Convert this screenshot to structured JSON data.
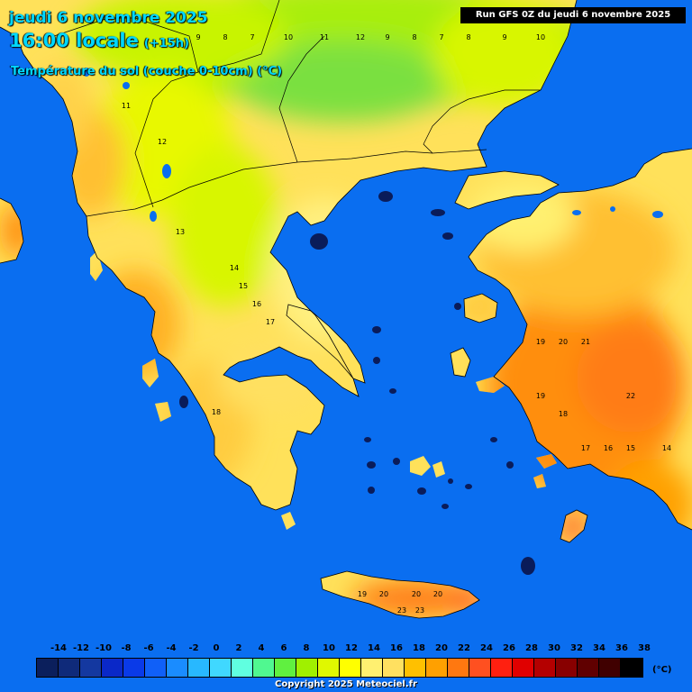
{
  "header": {
    "date": "jeudi 6 novembre 2025",
    "time": "16:00 locale",
    "offset": "(+15h)",
    "parameter": "Température du sol (couche 0-10cm) (°C)",
    "run": "Run GFS 0Z du jeudi 6 novembre 2025"
  },
  "map": {
    "region": "Greece / Aegean Sea",
    "sea_color": "#0a6ef0",
    "sample_values": {
      "north_balkans": [
        9,
        8,
        7,
        10,
        11,
        12,
        9,
        8,
        7,
        8,
        9,
        10
      ],
      "western_turkey": [
        19,
        20,
        21,
        22,
        19,
        18,
        17,
        16,
        15,
        14
      ],
      "greek_mainland": [
        14,
        15,
        16,
        17,
        18,
        13,
        12,
        11
      ],
      "crete": [
        19,
        20,
        20,
        20,
        23,
        23
      ]
    }
  },
  "legend": {
    "labels": [
      "-14",
      "-12",
      "-10",
      "-8",
      "-6",
      "-4",
      "-2",
      "0",
      "2",
      "4",
      "6",
      "8",
      "10",
      "12",
      "14",
      "16",
      "18",
      "20",
      "22",
      "24",
      "26",
      "28",
      "30",
      "32",
      "34",
      "36",
      "38"
    ],
    "colors": [
      "#0b1f5c",
      "#0f2a7a",
      "#1438a0",
      "#0a28c8",
      "#0a3ae8",
      "#1060f8",
      "#1a8cff",
      "#28b8ff",
      "#40d8ff",
      "#60ffe0",
      "#50f890",
      "#60f040",
      "#a0f000",
      "#e0f800",
      "#ffff00",
      "#fff070",
      "#ffe060",
      "#ffc000",
      "#ffa000",
      "#ff7810",
      "#ff5020",
      "#ff2010",
      "#e00000",
      "#b40000",
      "#880000",
      "#600000",
      "#400000",
      "#000000"
    ],
    "unit": "(°C)"
  },
  "footer": {
    "copyright": "Copyright 2025 Meteociel.fr"
  }
}
